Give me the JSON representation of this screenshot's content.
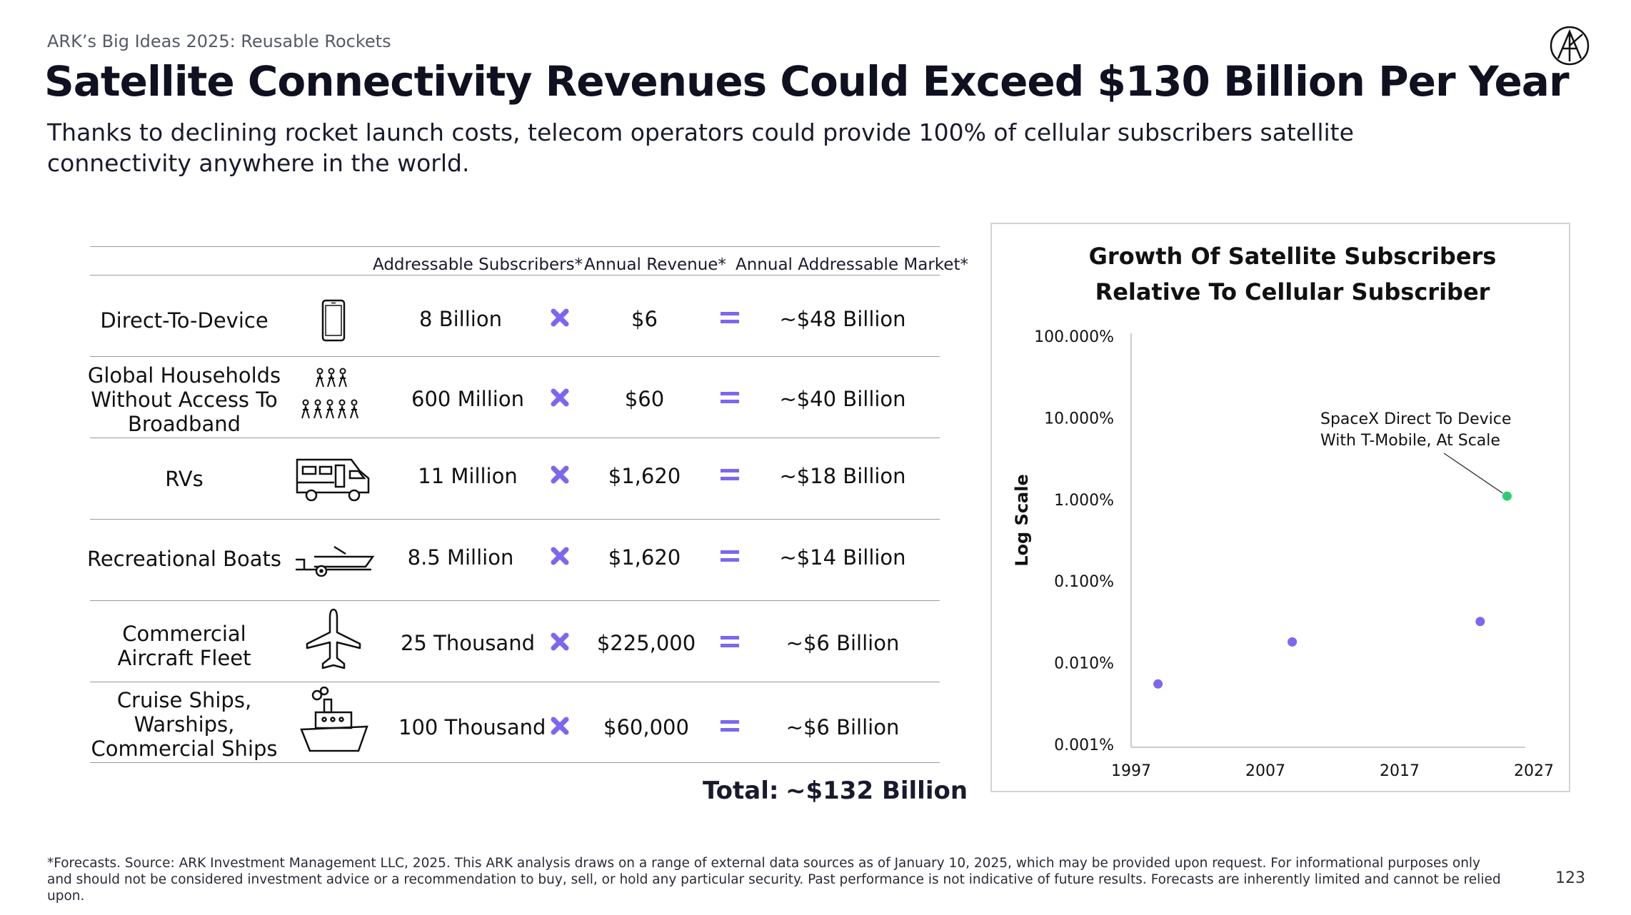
{
  "header": {
    "kicker": "ARK’s Big Ideas 2025: Reusable Rockets",
    "title": "Satellite Connectivity Revenues Could Exceed $130 Billion Per Year",
    "subtitle": "Thanks to declining rocket launch costs, telecom operators could provide 100% of cellular subscribers satellite connectivity anywhere in the world."
  },
  "table": {
    "columns": [
      "Addressable Subscribers*",
      "Annual Revenue*",
      "Annual Addressable Market*"
    ],
    "rows": [
      {
        "label": "Direct-To-Device",
        "icon": "smartphone-icon",
        "subscribers": "8 Billion",
        "revenue": "$6",
        "market": "~$48 Billion"
      },
      {
        "label": "Global Households Without Access To Broadband",
        "icon": "household-people-icon",
        "subscribers": "600 Million",
        "revenue": "$60",
        "market": "~$40 Billion"
      },
      {
        "label": "RVs",
        "icon": "rv-icon",
        "subscribers": "11 Million",
        "revenue": "$1,620",
        "market": "~$18 Billion"
      },
      {
        "label": "Recreational Boats",
        "icon": "boat-trailer-icon",
        "subscribers": "8.5 Million",
        "revenue": "$1,620",
        "market": "~$14 Billion"
      },
      {
        "label": "Commercial Aircraft Fleet",
        "icon": "airplane-icon",
        "subscribers": "25 Thousand",
        "revenue": "$225,000",
        "market": "~$6 Billion"
      },
      {
        "label": "Cruise Ships, Warships, Commercial Ships",
        "icon": "ship-icon",
        "subscribers": "100 Thousand",
        "revenue": "$60,000",
        "market": "~$6 Billion"
      }
    ],
    "operator_icons": [
      "multiply-icon",
      "equals-icon"
    ],
    "total_label": "Total:",
    "total_value": "~$132 Billion"
  },
  "chart_data": {
    "type": "scatter",
    "title": "Growth Of Satellite Subscribers Relative To Cellular Subscriber",
    "ylabel": "Log Scale",
    "xlabel": "",
    "y_scale": "log",
    "xlim": [
      1997,
      2027
    ],
    "ylim": [
      0.001,
      100
    ],
    "x_ticks": [
      "1997",
      "2007",
      "2017",
      "2027"
    ],
    "y_ticks": [
      "100.000%",
      "10.000%",
      "1.000%",
      "0.100%",
      "0.010%",
      "0.001%"
    ],
    "points": [
      {
        "x": 1999,
        "y": 0.0055,
        "color": "#7b68ee"
      },
      {
        "x": 2009,
        "y": 0.018,
        "color": "#7b68ee"
      },
      {
        "x": 2023,
        "y": 0.032,
        "color": "#7b68ee"
      },
      {
        "x": 2025,
        "y": 1.1,
        "color": "#2ecc71"
      }
    ],
    "annotation": {
      "text": [
        "SpaceX Direct To Device",
        "With T-Mobile, At Scale"
      ]
    },
    "grid": false
  },
  "footer": {
    "footnote": "*Forecasts. Source: ARK Investment Management LLC, 2025. This ARK analysis draws on a range of external data sources as of January 10, 2025, which may be provided upon request. For informational purposes only and should not be considered investment advice or a recommendation to buy, sell, or hold any particular security. Past performance is not indicative of future results. Forecasts are inherently limited and cannot be relied upon.",
    "page_number": "123"
  },
  "colors": {
    "accent": "#7b68ee",
    "highlight": "#2ecc71",
    "text": "#111111"
  }
}
